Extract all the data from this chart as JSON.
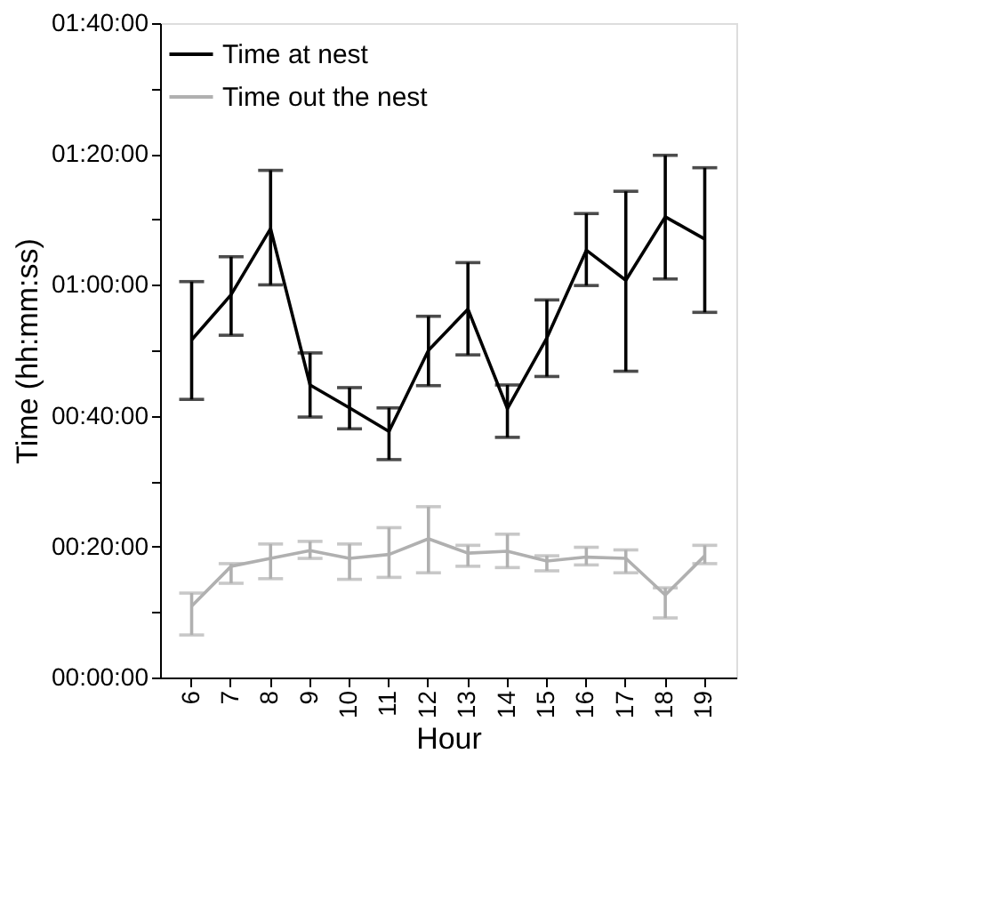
{
  "chart_data": {
    "type": "line",
    "xlabel": "Hour",
    "ylabel": "Time (hh:mm:ss)",
    "categories": [
      "6",
      "7",
      "8",
      "9",
      "10",
      "11",
      "12",
      "13",
      "14",
      "15",
      "16",
      "17",
      "18",
      "19"
    ],
    "series": [
      {
        "name": "Time at nest",
        "color": "#000000",
        "values": [
          51.6,
          58.5,
          68.6,
          44.7,
          41.2,
          37.6,
          50,
          56.3,
          41.1,
          51.9,
          65.3,
          60.7,
          70.4,
          67
        ],
        "errors": [
          [
            42.5,
            60.5
          ],
          [
            52.3,
            64.3
          ],
          [
            60,
            77.5
          ],
          [
            39.8,
            49.6
          ],
          [
            38,
            44.3
          ],
          [
            33.3,
            41.2
          ],
          [
            44.6,
            55.2
          ],
          [
            49.3,
            63.4
          ],
          [
            36.7,
            44.7
          ],
          [
            46,
            57.7
          ],
          [
            59.9,
            70.9
          ],
          [
            46.8,
            74.3
          ],
          [
            60.9,
            79.8
          ],
          [
            55.8,
            77.9
          ]
        ]
      },
      {
        "name": "Time out the nest",
        "color": "#b0b0b0",
        "values": [
          10.9,
          17,
          18.2,
          19.4,
          18.2,
          18.8,
          21.2,
          19,
          19.3,
          17.8,
          18.4,
          18.2,
          12.6,
          18.6
        ],
        "errors": [
          [
            6.5,
            12.9
          ],
          [
            14.4,
            17.4
          ],
          [
            15.1,
            20.4
          ],
          [
            18.2,
            20.8
          ],
          [
            15,
            20.4
          ],
          [
            15.3,
            22.9
          ],
          [
            16,
            26.1
          ],
          [
            17,
            20.2
          ],
          [
            16.8,
            21.9
          ],
          [
            16.3,
            18.6
          ],
          [
            17.2,
            19.9
          ],
          [
            16,
            19.5
          ],
          [
            9.1,
            13.7
          ],
          [
            17.4,
            20.2
          ]
        ]
      }
    ],
    "ylim": [
      0,
      100
    ],
    "yticks": [
      {
        "value": 0,
        "label": "00:00:00"
      },
      {
        "value": 10,
        "label": null
      },
      {
        "value": 20,
        "label": "00:20:00"
      },
      {
        "value": 30,
        "label": null
      },
      {
        "value": 40,
        "label": "00:40:00"
      },
      {
        "value": 50,
        "label": null
      },
      {
        "value": 60,
        "label": "01:00:00"
      },
      {
        "value": 70,
        "label": null
      },
      {
        "value": 80,
        "label": "01:20:00"
      },
      {
        "value": 90,
        "label": null
      },
      {
        "value": 100,
        "label": "01:40:00"
      }
    ],
    "grid": false,
    "legend": "top left",
    "marker": "none",
    "line_style": "solid"
  }
}
